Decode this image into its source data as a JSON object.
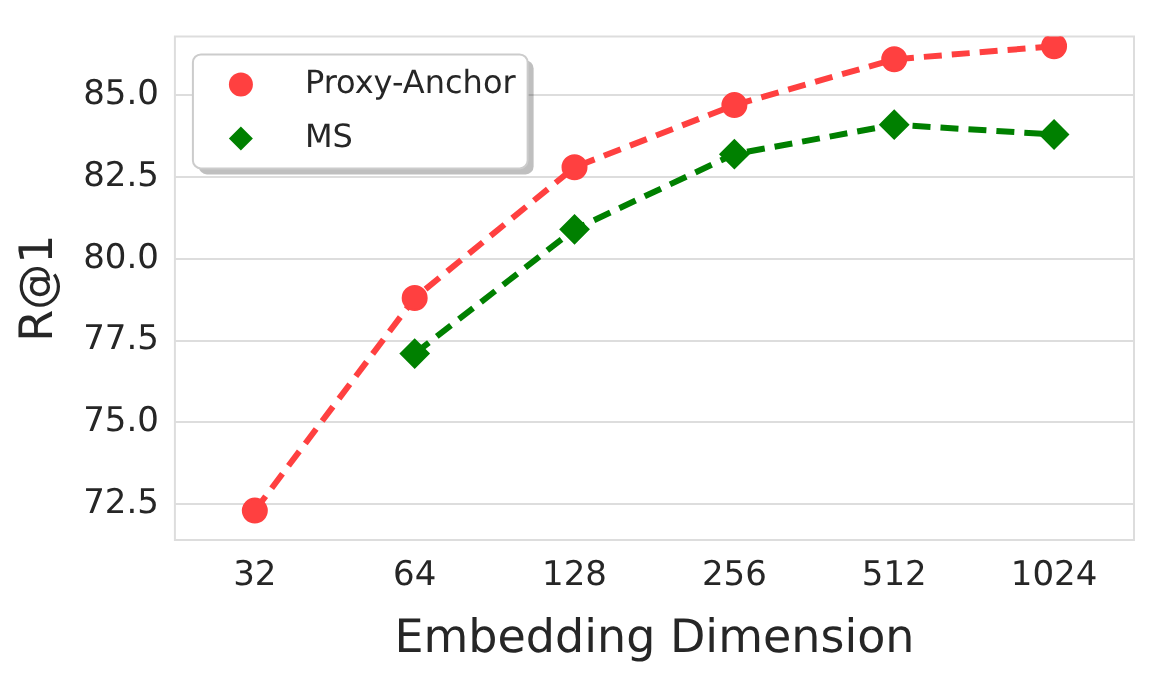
{
  "chart_data": {
    "type": "line",
    "xlabel": "Embedding Dimension",
    "ylabel": "R@1",
    "categories": [
      "32",
      "64",
      "128",
      "256",
      "512",
      "1024"
    ],
    "series": [
      {
        "name": "Proxy-Anchor",
        "color": "#ff4040",
        "marker": "circle",
        "values": [
          72.3,
          78.8,
          82.8,
          84.7,
          86.1,
          86.5
        ]
      },
      {
        "name": "MS",
        "color": "#008000",
        "marker": "diamond",
        "values": [
          null,
          77.1,
          80.9,
          83.2,
          84.1,
          83.8
        ]
      }
    ],
    "ylim": [
      71.4,
      86.8
    ],
    "yticks": [
      72.5,
      {
        "value": 75,
        "label": "75.0"
      },
      77.5,
      {
        "value": 80,
        "label": "80.0"
      },
      82.5,
      {
        "value": 85,
        "label": "85.0"
      }
    ],
    "grid": "y",
    "legend": "top left",
    "line_style": "dashed"
  }
}
